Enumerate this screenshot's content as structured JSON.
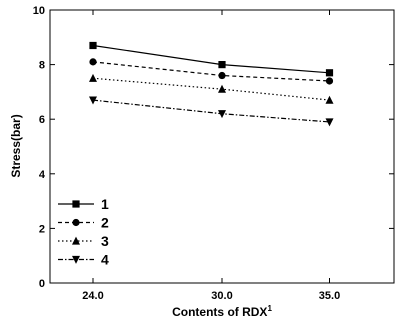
{
  "chart_data": {
    "type": "line",
    "xlabel": "Contents of RDX",
    "xlabel_superscript": "1",
    "ylabel": "Stress(bar)",
    "x": [
      24.0,
      30.0,
      35.0
    ],
    "x_tick_labels": [
      "24.0",
      "30.0",
      "35.0"
    ],
    "xlim": [
      22.0,
      38.0
    ],
    "ylim": [
      0,
      10
    ],
    "y_ticks": [
      0,
      2,
      4,
      6,
      8,
      10
    ],
    "y_tick_labels": [
      "0",
      "2",
      "4",
      "6",
      "8",
      "10"
    ],
    "grid": false,
    "legend_position": "bottom-left",
    "series": [
      {
        "name": "1",
        "values": [
          8.7,
          8.0,
          7.7
        ],
        "marker": "square",
        "line_style": "solid"
      },
      {
        "name": "2",
        "values": [
          8.1,
          7.6,
          7.4
        ],
        "marker": "circle",
        "line_style": "dashed"
      },
      {
        "name": "3",
        "values": [
          7.5,
          7.1,
          6.7
        ],
        "marker": "triangle-up",
        "line_style": "dotted"
      },
      {
        "name": "4",
        "values": [
          6.7,
          6.2,
          5.9
        ],
        "marker": "triangle-down",
        "line_style": "dash-dot"
      }
    ],
    "colors": {
      "line": "#000000",
      "background": "#ffffff"
    }
  }
}
